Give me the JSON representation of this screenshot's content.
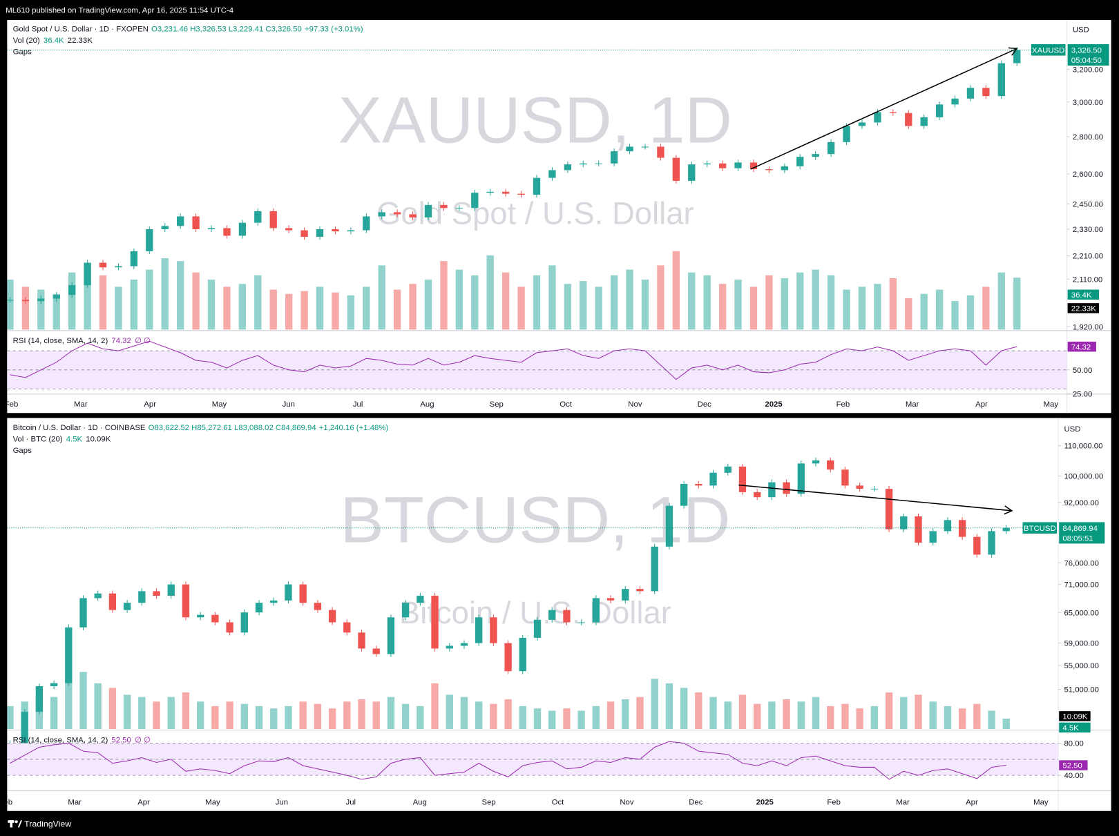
{
  "header": {
    "title": "ML610 published on TradingView.com, Apr 16, 2025 11:54 UTC-4"
  },
  "footer": {
    "brand": "TradingView"
  },
  "chart_data": [
    {
      "type": "candlestick",
      "title": "Gold Spot / U.S. Dollar · 1D · FXOPEN",
      "ohlc": [
        "O3,231.46",
        "H3,326.53",
        "L3,229.41",
        "C3,326.50"
      ],
      "change": "+97.33 (+3.01%)",
      "volume_label": "Vol (20)",
      "volume_legend": [
        "36.4K",
        "22.33K"
      ],
      "gaps": "Gaps",
      "rsi_label": "RSI (14, close, SMA, 14, 2)",
      "rsi_last": 74.32,
      "rsi_extra": "∅ ∅",
      "watermark": "XAUUSD, 1D",
      "watermark_sub": "Gold Spot / U.S. Dollar",
      "currency": "USD",
      "symbol": "XAUUSD",
      "last": {
        "value": 3326.5,
        "label": "3,326.50"
      },
      "countdown": "05:04:50",
      "xticks": [
        "Feb",
        "Mar",
        "Apr",
        "May",
        "Jun",
        "Jul",
        "Aug",
        "Sep",
        "Oct",
        "Nov",
        "Dec",
        "2025",
        "Feb",
        "Mar",
        "Apr",
        "May"
      ],
      "log": true,
      "ylim": [
        1909,
        3530
      ],
      "yticks": [
        {
          "value": 3200,
          "label": "3,200.00"
        },
        {
          "value": 3000,
          "label": "3,000.00"
        },
        {
          "value": 2800,
          "label": "2,800.00"
        },
        {
          "value": 2600,
          "label": "2,600.00"
        },
        {
          "value": 2450,
          "label": "2,450.00"
        },
        {
          "value": 2330,
          "label": "2,330.00"
        },
        {
          "value": 2210,
          "label": "2,210.00"
        },
        {
          "value": 2110,
          "label": "2,110.00"
        },
        {
          "value": 1920,
          "label": "1,920.00"
        }
      ],
      "values": [
        2025,
        2020,
        2030,
        2045,
        2085,
        2180,
        2160,
        2165,
        2230,
        2330,
        2345,
        2390,
        2330,
        2335,
        2300,
        2360,
        2415,
        2335,
        2325,
        2295,
        2330,
        2320,
        2325,
        2390,
        2410,
        2400,
        2385,
        2445,
        2430,
        2430,
        2505,
        2510,
        2500,
        2495,
        2580,
        2620,
        2650,
        2655,
        2655,
        2720,
        2745,
        2745,
        2685,
        2565,
        2650,
        2655,
        2630,
        2660,
        2625,
        2620,
        2640,
        2690,
        2705,
        2770,
        2860,
        2880,
        2940,
        2935,
        2860,
        2910,
        2985,
        3020,
        3085,
        3035,
        3240,
        3326.5
      ],
      "volume": [
        35,
        30,
        28,
        25,
        40,
        45,
        38,
        30,
        35,
        42,
        50,
        48,
        40,
        35,
        30,
        32,
        38,
        28,
        25,
        27,
        30,
        26,
        24,
        30,
        45,
        28,
        32,
        35,
        48,
        42,
        38,
        52,
        40,
        30,
        38,
        45,
        32,
        34,
        30,
        38,
        42,
        35,
        45,
        55,
        40,
        38,
        32,
        35,
        30,
        38,
        36,
        40,
        42,
        38,
        28,
        30,
        32,
        36,
        22,
        25,
        28,
        20,
        24,
        30,
        40,
        36.4
      ],
      "rsi": [
        45,
        42,
        50,
        58,
        70,
        78,
        72,
        70,
        75,
        80,
        74,
        68,
        60,
        58,
        52,
        60,
        65,
        55,
        50,
        48,
        55,
        52,
        54,
        62,
        60,
        56,
        55,
        62,
        55,
        58,
        65,
        62,
        60,
        58,
        68,
        70,
        72,
        65,
        62,
        70,
        72,
        70,
        55,
        40,
        52,
        55,
        50,
        55,
        48,
        47,
        50,
        56,
        58,
        66,
        72,
        70,
        74,
        70,
        60,
        65,
        70,
        72,
        70,
        55,
        70,
        74.32
      ],
      "rsi_ylim": [
        25,
        90
      ],
      "rsi_yticks": [
        {
          "value": 50,
          "label": "50.00"
        },
        {
          "value": 25,
          "label": "25.00"
        }
      ],
      "rsi_levels": [
        70,
        50,
        30
      ],
      "up_color": "#26a69a",
      "down_color": "#ef5350",
      "rsi_color": "#9c27b0"
    },
    {
      "type": "candlestick",
      "title": "Bitcoin / U.S. Dollar · 1D · COINBASE",
      "ohlc": [
        "O83,622.52",
        "H85,272.61",
        "L83,088.02",
        "C84,869.94"
      ],
      "change": "+1,240.16 (+1.48%)",
      "volume_label": "Vol · BTC (20)",
      "volume_legend": [
        "4.5K",
        "10.09K"
      ],
      "gaps": "Gaps",
      "rsi_label": "RSI (14, close, SMA, 14, 2)",
      "rsi_last": {
        "value": 52.5,
        "label": "52.50"
      },
      "rsi_extra": "∅ ∅",
      "watermark": "BTCUSD, 1D",
      "watermark_sub": "Bitcoin / U.S. Dollar",
      "currency": "USD",
      "symbol": "BTCUSD",
      "last": {
        "value": 84869.94,
        "label": "84,869.94"
      },
      "countdown": "08:05:51",
      "xticks": [
        "Feb",
        "Mar",
        "Apr",
        "May",
        "Jun",
        "Jul",
        "Aug",
        "Sep",
        "Oct",
        "Nov",
        "Dec",
        "2025",
        "Feb",
        "Mar",
        "Apr",
        "May"
      ],
      "log": true,
      "ylim": [
        45000,
        119500
      ],
      "yticks": [
        {
          "value": 110000,
          "label": "110,000.00"
        },
        {
          "value": 100000,
          "label": "100,000.00"
        },
        {
          "value": 92000,
          "label": "92,000.00"
        },
        {
          "value": 76000,
          "label": "76,000.00"
        },
        {
          "value": 71000,
          "label": "71,000.00"
        },
        {
          "value": 65000,
          "label": "65,000.00"
        },
        {
          "value": 59000,
          "label": "59,000.00"
        },
        {
          "value": 55000,
          "label": "55,000.00"
        },
        {
          "value": 51000,
          "label": "51,000.00"
        }
      ],
      "values": [
        43000,
        47500,
        51500,
        52000,
        62000,
        68000,
        69000,
        65500,
        67000,
        69500,
        68500,
        71000,
        64000,
        64500,
        63000,
        61000,
        65000,
        67000,
        67500,
        71000,
        67000,
        65500,
        63000,
        61000,
        58000,
        57000,
        64000,
        67000,
        68500,
        58000,
        58500,
        59000,
        64000,
        59000,
        54000,
        60000,
        63500,
        65500,
        63000,
        63000,
        68000,
        67500,
        70000,
        69500,
        80000,
        91000,
        97500,
        97000,
        101000,
        103000,
        95000,
        93500,
        98000,
        94500,
        104000,
        105000,
        102000,
        97000,
        96000,
        96000,
        84500,
        88000,
        81000,
        84000,
        87000,
        82500,
        78000,
        84000,
        84869.94
      ],
      "volume": [
        10,
        12,
        15,
        14,
        22,
        25,
        20,
        18,
        15,
        14,
        12,
        14,
        16,
        12,
        10,
        12,
        11,
        10,
        9,
        10,
        12,
        11,
        9,
        12,
        13,
        12,
        14,
        11,
        10,
        20,
        15,
        14,
        12,
        11,
        13,
        10,
        9,
        8,
        9,
        8,
        10,
        12,
        13,
        14,
        22,
        20,
        18,
        16,
        14,
        12,
        15,
        11,
        12,
        13,
        12,
        14,
        10,
        11,
        9,
        10,
        16,
        14,
        15,
        12,
        10,
        9,
        11,
        8,
        4.5
      ],
      "rsi": [
        55,
        65,
        75,
        78,
        80,
        70,
        68,
        55,
        58,
        62,
        56,
        60,
        45,
        48,
        46,
        42,
        52,
        58,
        57,
        62,
        52,
        48,
        44,
        40,
        35,
        38,
        55,
        60,
        62,
        40,
        42,
        44,
        55,
        45,
        38,
        52,
        56,
        58,
        48,
        50,
        58,
        56,
        62,
        60,
        75,
        82,
        80,
        70,
        68,
        66,
        55,
        52,
        58,
        52,
        62,
        64,
        58,
        52,
        50,
        50,
        35,
        45,
        40,
        46,
        48,
        42,
        36,
        50,
        52.5
      ],
      "rsi_ylim": [
        24,
        95
      ],
      "rsi_yticks": [
        {
          "value": 80,
          "label": "80.00"
        },
        {
          "value": 40,
          "label": "40.00"
        }
      ],
      "rsi_levels": [
        80,
        60,
        40
      ],
      "up_color": "#26a69a",
      "down_color": "#ef5350",
      "rsi_color": "#9c27b0"
    }
  ]
}
